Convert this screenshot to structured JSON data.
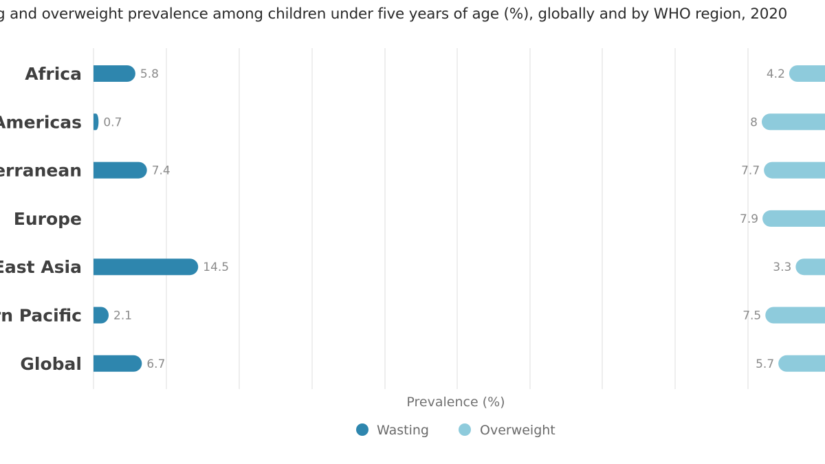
{
  "title": "g and overweight prevalence among children under five years of age (%), globally and by WHO region, 2020",
  "chart_data": {
    "type": "bar",
    "orientation": "horizontal",
    "title": "g and overweight prevalence among children under five years of age (%), globally and by WHO region, 2020",
    "xlabel": "Prevalence (%)",
    "ylabel": "",
    "categories": [
      "Africa",
      "Americas",
      "terranean",
      "Europe",
      "-East Asia",
      "ern Pacific",
      "Global"
    ],
    "series": [
      {
        "name": "Wasting",
        "color": "#2e86ae",
        "values": [
          5.8,
          0.7,
          7.4,
          null,
          14.5,
          2.1,
          6.7
        ]
      },
      {
        "name": "Overweight",
        "color": "#8ecbdc",
        "values": [
          4.2,
          8,
          7.7,
          7.9,
          3.3,
          7.5,
          5.7
        ]
      }
    ],
    "value_labels": {
      "Wasting": [
        "5.8",
        "0.7",
        "7.4",
        "",
        "14.5",
        "2.1",
        "6.7"
      ],
      "Overweight": [
        "4.2",
        "8",
        "7.7",
        "7.9",
        "3.3",
        "7.5",
        "5.7"
      ]
    },
    "grid": true,
    "legend": "bottom-center"
  }
}
